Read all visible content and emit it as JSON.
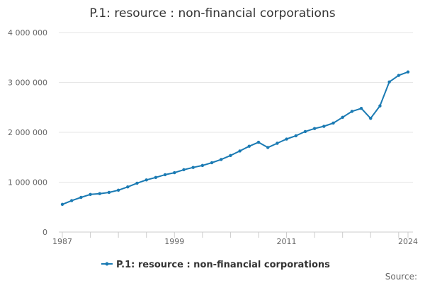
{
  "chart_data": {
    "type": "line",
    "title": "P.1: resource : non-financial corporations",
    "xlabel": "",
    "ylabel": "",
    "ylim": [
      0,
      4000000
    ],
    "y_ticks": [
      0,
      1000000,
      2000000,
      3000000,
      4000000
    ],
    "y_tick_labels": [
      "0",
      "1 000 000",
      "2 000 000",
      "3 000 000",
      "4 000 000"
    ],
    "x_range": [
      1987,
      2024
    ],
    "x_tick_labels": [
      1987,
      1999,
      2011,
      2024
    ],
    "grid": true,
    "legend_position": "bottom-center",
    "series": [
      {
        "name": "P.1: resource : non-financial corporations",
        "color": "#1a7ab3",
        "x": [
          1987,
          1988,
          1989,
          1990,
          1991,
          1992,
          1993,
          1994,
          1995,
          1996,
          1997,
          1998,
          1999,
          2000,
          2001,
          2002,
          2003,
          2004,
          2005,
          2006,
          2007,
          2008,
          2009,
          2010,
          2011,
          2012,
          2013,
          2014,
          2015,
          2016,
          2017,
          2018,
          2019,
          2020,
          2021,
          2022,
          2023,
          2024
        ],
        "values": [
          555000,
          630000,
          695000,
          755000,
          770000,
          795000,
          840000,
          905000,
          980000,
          1045000,
          1095000,
          1150000,
          1190000,
          1250000,
          1295000,
          1335000,
          1390000,
          1455000,
          1535000,
          1625000,
          1720000,
          1800000,
          1695000,
          1780000,
          1865000,
          1930000,
          2015000,
          2075000,
          2120000,
          2185000,
          2300000,
          2420000,
          2480000,
          2280000,
          2530000,
          3010000,
          3140000,
          3210000
        ]
      }
    ]
  },
  "footer": {
    "source_label": "Source:"
  }
}
